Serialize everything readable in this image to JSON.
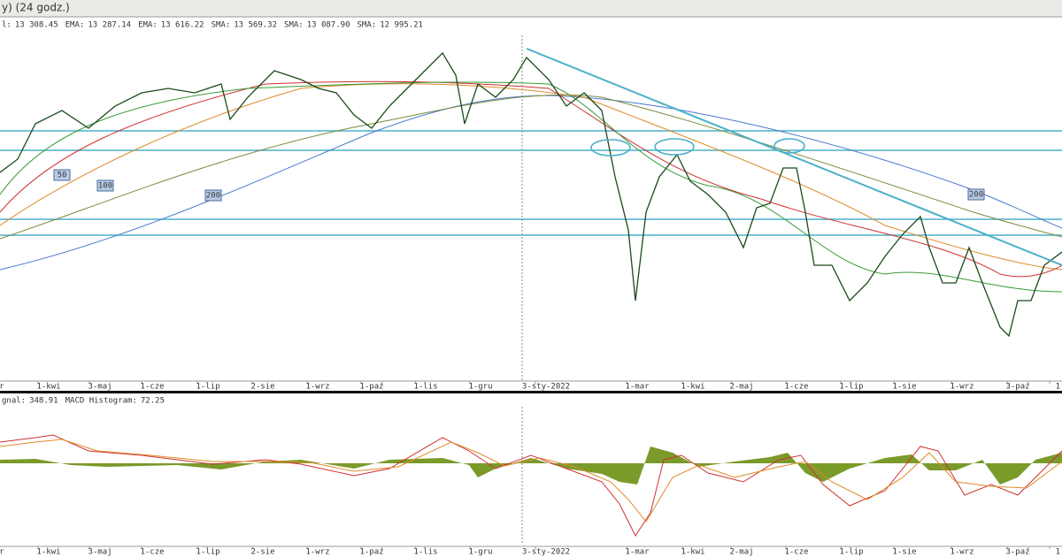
{
  "header": {
    "title": "y) (24 godz.)"
  },
  "legend": [
    {
      "label": "l:",
      "value": "13 308.45",
      "color": "#333333"
    },
    {
      "label": "EMA:",
      "value": "13 287.14",
      "color": "#e08a2a"
    },
    {
      "label": "EMA:",
      "value": "13 616.22",
      "color": "#333333"
    },
    {
      "label": "SMA:",
      "value": "13 569.32",
      "color": "#d03030"
    },
    {
      "label": "SMA:",
      "value": "13 087.90",
      "color": "#333333"
    },
    {
      "label": "SMA:",
      "value": "12 995.21",
      "color": "#3a9a3a"
    }
  ],
  "ma_labels": [
    "50",
    "100",
    "200",
    "200"
  ],
  "x_labels": [
    "r",
    "1-kwi",
    "3-maj",
    "1-cze",
    "1-lip",
    "2-sie",
    "1-wrz",
    "1-paź",
    "1-lis",
    "1-gru",
    "3-sty-2022",
    "1-mar",
    "1-kwi",
    "2-maj",
    "1-cze",
    "1-lip",
    "1-sie",
    "1-wrz",
    "3-paź",
    "1"
  ],
  "macd_legend": [
    {
      "label": "gnal:",
      "value": "348.91"
    },
    {
      "label": "MACD Histogram:",
      "value": "72.25"
    }
  ]
}
